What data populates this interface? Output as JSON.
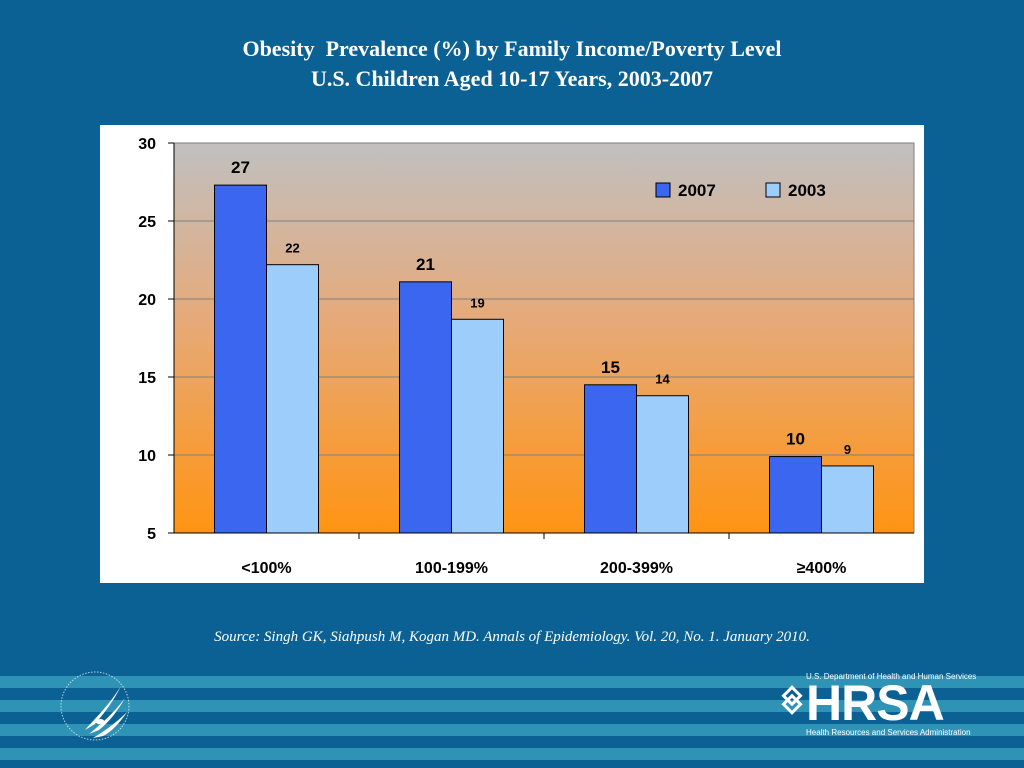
{
  "slide": {
    "title_line1": "Obesity  Prevalence (%) by Family Income/Poverty Level",
    "title_line2": "U.S. Children Aged 10-17 Years, 2003-2007",
    "source": "Source: Singh GK, Siahpush M, Kogan MD. Annals of Epidemiology. Vol. 20, No. 1. January 2010."
  },
  "footer": {
    "hrsa_dept": "U.S. Department of Health and Human Services",
    "hrsa_word": "HRSA",
    "hrsa_sub": "Health Resources and Services Administration"
  },
  "chart_data": {
    "type": "bar",
    "title": "Obesity  Prevalence (%) by Family Income/Poverty Level",
    "subtitle": "U.S. Children Aged 10-17 Years, 2003-2007",
    "categories": [
      "<100%",
      "100-199%",
      "200-399%",
      "≥400%"
    ],
    "series": [
      {
        "name": "2007",
        "values": [
          27.3,
          21.1,
          14.5,
          9.9
        ],
        "labels": [
          "27",
          "21",
          "15",
          "10"
        ],
        "color": "#3a66f0"
      },
      {
        "name": "2003",
        "values": [
          22.2,
          18.7,
          13.8,
          9.3
        ],
        "labels": [
          "22",
          "19",
          "14",
          "9"
        ],
        "color": "#9dcdfb"
      }
    ],
    "xlabel": "",
    "ylabel": "",
    "ylim": [
      5,
      30
    ],
    "yticks": [
      5,
      10,
      15,
      20,
      25,
      30
    ],
    "grid": true,
    "legend": "top-right"
  }
}
